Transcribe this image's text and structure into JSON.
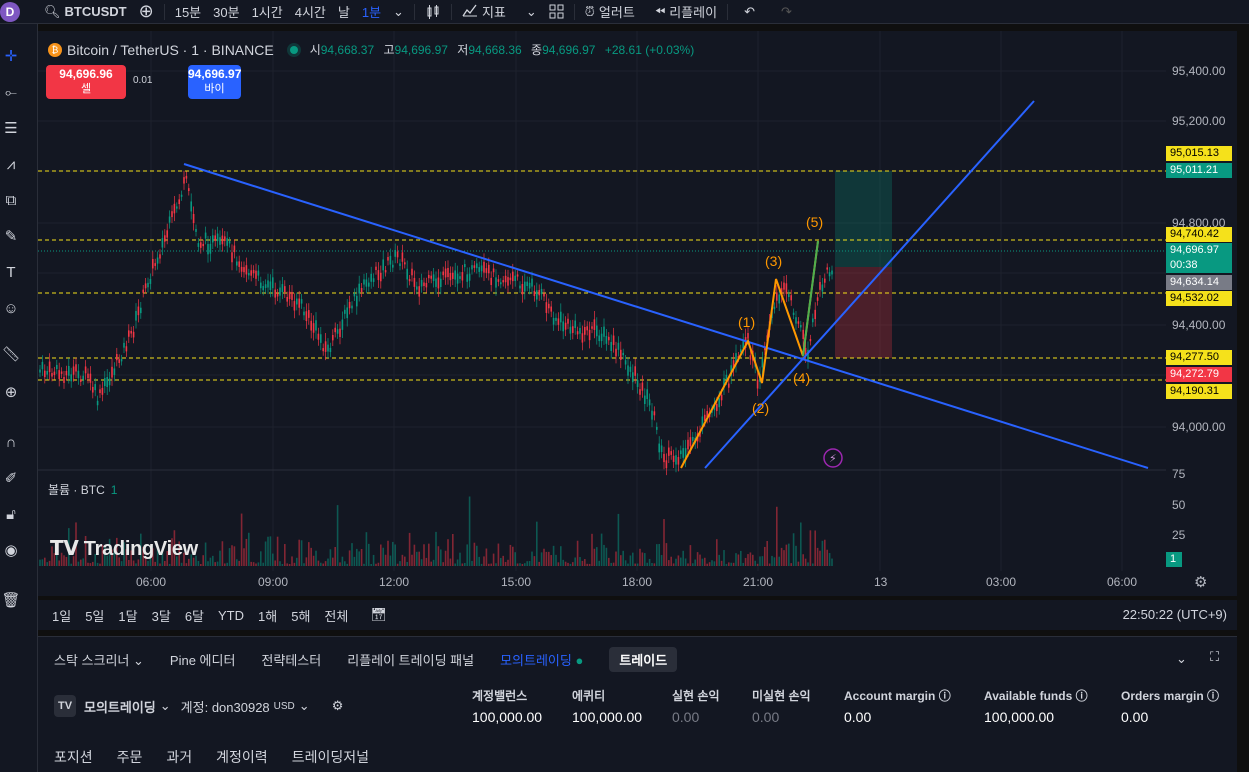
{
  "topbar": {
    "avatar_letter": "D",
    "symbol": "BTCUSDT",
    "intervals": [
      "15분",
      "30분",
      "1시간",
      "4시간",
      "날",
      "1분"
    ],
    "indicators_label": "지표",
    "alert_label": "얼러트",
    "replay_label": "리플레이"
  },
  "legend": {
    "title": "Bitcoin / TetherUS · 1 · BINANCE",
    "open_label": "시",
    "open": "94,668.37",
    "high_label": "고",
    "high": "94,696.97",
    "low_label": "저",
    "low": "94,668.36",
    "close_label": "종",
    "close": "94,696.97",
    "change": "+28.61 (+0.03%)"
  },
  "trade": {
    "sell_price": "94,696.96",
    "sell_label": "셀",
    "spread": "0.01",
    "buy_price": "94,696.97",
    "buy_label": "바이"
  },
  "price_scale": {
    "ticks": [
      "95,400.00",
      "95,200.00",
      "94,800.00",
      "94,400.00",
      "94,000.00"
    ],
    "labels": [
      {
        "text": "95,015.13",
        "color": "#f5e11b",
        "fg": "#000"
      },
      {
        "text": "95,011.21",
        "color": "#089981",
        "fg": "#fff"
      },
      {
        "text": "94,740.42",
        "color": "#f5e11b",
        "fg": "#000"
      },
      {
        "text": "94,696.97",
        "color": "#089981",
        "fg": "#fff"
      },
      {
        "text": "00:38",
        "color": "#089981",
        "fg": "#fff"
      },
      {
        "text": "94,634.14",
        "color": "#787b86",
        "fg": "#fff"
      },
      {
        "text": "94,532.02",
        "color": "#f5e11b",
        "fg": "#000"
      },
      {
        "text": "94,277.50",
        "color": "#f5e11b",
        "fg": "#000"
      },
      {
        "text": "94,272.79",
        "color": "#f23645",
        "fg": "#fff"
      },
      {
        "text": "94,190.31",
        "color": "#f5e11b",
        "fg": "#000"
      }
    ],
    "volume_ticks": [
      "75",
      "50",
      "25"
    ],
    "volume_current": "1"
  },
  "elliott": [
    "(1)",
    "(2)",
    "(3)",
    "(4)",
    "(5)"
  ],
  "volume_legend": {
    "label": "볼륨 · BTC",
    "value": "1"
  },
  "logo_text": "TradingView",
  "time_axis": [
    "06:00",
    "09:00",
    "12:00",
    "15:00",
    "18:00",
    "21:00",
    "13",
    "03:00",
    "06:00"
  ],
  "ranges": [
    "1일",
    "5일",
    "1달",
    "3달",
    "6달",
    "YTD",
    "1해",
    "5해",
    "전체"
  ],
  "clock": "22:50:22 (UTC+9)",
  "bottom": {
    "tabs": [
      "스탁 스크리너",
      "Pine 에디터",
      "전략테스터",
      "리플레이 트레이딩 패널",
      "모의트레이딩",
      "트레이드"
    ],
    "account_name": "모의트레이딩",
    "account_id": "계정: don30928",
    "account_currency": "USD",
    "stats": [
      {
        "label": "계정밸런스",
        "value": "100,000.00"
      },
      {
        "label": "에퀴티",
        "value": "100,000.00"
      },
      {
        "label": "실현 손익",
        "value": "0.00"
      },
      {
        "label": "미실현 손익",
        "value": "0.00"
      },
      {
        "label": "Account margin",
        "value": "0.00"
      },
      {
        "label": "Available funds",
        "value": "100,000.00"
      },
      {
        "label": "Orders margin",
        "value": "0.00"
      }
    ],
    "subtabs": [
      "포지션",
      "주문",
      "과거",
      "계정이력",
      "트레이딩저널"
    ]
  }
}
